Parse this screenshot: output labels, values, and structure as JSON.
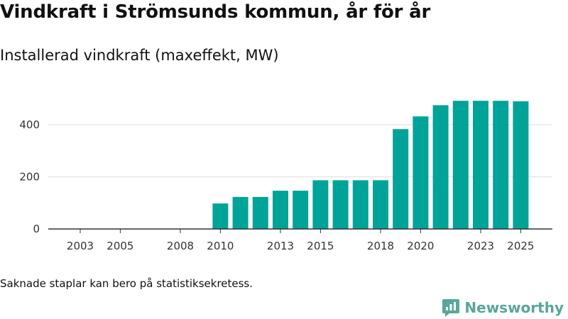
{
  "title": "Vindkraft i Strömsunds kommun, år för år",
  "subtitle": "Installerad vindkraft (maxeffekt, MW)",
  "note": "Saknade staplar kan bero på statistiksekretess.",
  "brand": {
    "name": "Newsworthy",
    "logo_icon": "newsworthy-logo-icon",
    "color": "#5aa69a"
  },
  "colors": {
    "bar": "#00a398",
    "grid": "#dddddd",
    "axis": "#333333"
  },
  "chart_data": {
    "type": "bar",
    "title": "Vindkraft i Strömsunds kommun, år för år",
    "subtitle": "Installerad vindkraft (maxeffekt, MW)",
    "xlabel": "",
    "ylabel": "",
    "categories": [
      "2003",
      "2004",
      "2005",
      "2006",
      "2007",
      "2008",
      "2009",
      "2010",
      "2011",
      "2012",
      "2013",
      "2014",
      "2015",
      "2016",
      "2017",
      "2018",
      "2019",
      "2020",
      "2021",
      "2022",
      "2023",
      "2024",
      "2025"
    ],
    "values": [
      0,
      0,
      0,
      0,
      0,
      0,
      0,
      98,
      123,
      123,
      147,
      147,
      187,
      187,
      187,
      187,
      383,
      432,
      475,
      492,
      492,
      492,
      490
    ],
    "x_tick_labels": [
      "2003",
      "2005",
      "2008",
      "2010",
      "2013",
      "2015",
      "2018",
      "2020",
      "2023",
      "2025"
    ],
    "y_ticks": [
      0,
      200,
      400
    ],
    "ylim": [
      0,
      510
    ],
    "grid": true,
    "legend": "none"
  }
}
